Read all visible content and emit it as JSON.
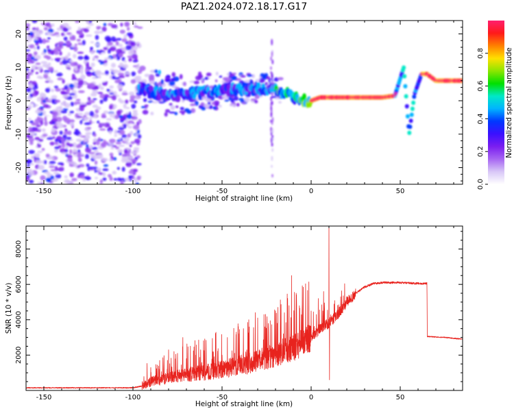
{
  "title": "PAZ1.2024.072.18.17.G17",
  "colors": {
    "snr_line": "#e8231e",
    "spectrum_cmap": [
      "#ffffff",
      "#d8c7f7",
      "#a766f2",
      "#7a1ef0",
      "#3b10ff",
      "#0038ff",
      "#00b4ff",
      "#00e8c8",
      "#00e000",
      "#8ce600",
      "#ffe000",
      "#ff8000",
      "#ff1a1a",
      "#ff1f6e"
    ]
  },
  "chart_data": [
    {
      "type": "heatmap",
      "xlabel": "Height of straight line (km)",
      "ylabel": "Frequency (Hz)",
      "xlim": [
        -160,
        85
      ],
      "ylim": [
        -25,
        24
      ],
      "xticks": [
        {
          "v": -150,
          "label": "-150"
        },
        {
          "v": -100,
          "label": "-100"
        },
        {
          "v": -50,
          "label": "-50"
        },
        {
          "v": 0,
          "label": "0"
        },
        {
          "v": 50,
          "label": "50"
        }
      ],
      "yticks": [
        {
          "v": -20,
          "label": "-20"
        },
        {
          "v": -10,
          "label": "-10"
        },
        {
          "v": 0,
          "label": "0"
        },
        {
          "v": 10,
          "label": "10"
        },
        {
          "v": 20,
          "label": "20"
        }
      ],
      "colorbar": {
        "label": "Normalized spectral amplitude",
        "range": [
          0,
          1
        ],
        "ticks": [
          {
            "v": 0.0,
            "label": "0.0"
          },
          {
            "v": 0.2,
            "label": "0.2"
          },
          {
            "v": 0.4,
            "label": "0.4"
          },
          {
            "v": 0.6,
            "label": "0.6"
          },
          {
            "v": 0.8,
            "label": "0.8"
          }
        ]
      },
      "ridge": [
        [
          -97,
          4
        ],
        [
          -90,
          2.5
        ],
        [
          -80,
          1.5
        ],
        [
          -70,
          2
        ],
        [
          -60,
          2.5
        ],
        [
          -50,
          3
        ],
        [
          -40,
          3.5
        ],
        [
          -30,
          3.5
        ],
        [
          -20,
          3.5
        ],
        [
          -15,
          2.5
        ],
        [
          -10,
          1
        ],
        [
          -5,
          0
        ],
        [
          0,
          0
        ],
        [
          5,
          1
        ],
        [
          10,
          1
        ],
        [
          20,
          1
        ],
        [
          30,
          1
        ],
        [
          40,
          1
        ],
        [
          47,
          1.5
        ],
        [
          52,
          10
        ],
        [
          55,
          -10
        ],
        [
          58,
          2
        ],
        [
          62,
          8
        ],
        [
          65,
          8
        ],
        [
          70,
          6
        ],
        [
          85,
          6
        ]
      ]
    },
    {
      "type": "line",
      "xlabel": "Height of straight line (km)",
      "ylabel": "SNR (10 * v/v)",
      "xlim": [
        -160,
        85
      ],
      "ylim": [
        0,
        9300
      ],
      "xticks": [
        {
          "v": -150,
          "label": "-150"
        },
        {
          "v": -100,
          "label": "-100"
        },
        {
          "v": -50,
          "label": "-50"
        },
        {
          "v": 0,
          "label": "0"
        },
        {
          "v": 50,
          "label": "50"
        }
      ],
      "yticks": [
        {
          "v": 2000,
          "label": "2000"
        },
        {
          "v": 4000,
          "label": "4000"
        },
        {
          "v": 6000,
          "label": "6000"
        },
        {
          "v": 8000,
          "label": "8000"
        }
      ],
      "envelope": [
        [
          -160,
          150
        ],
        [
          -100,
          150
        ],
        [
          -95,
          250
        ],
        [
          -90,
          500
        ],
        [
          -80,
          700
        ],
        [
          -70,
          900
        ],
        [
          -60,
          1000
        ],
        [
          -50,
          1200
        ],
        [
          -40,
          1400
        ],
        [
          -30,
          1700
        ],
        [
          -20,
          2000
        ],
        [
          -10,
          2400
        ],
        [
          0,
          3000
        ],
        [
          5,
          3500
        ],
        [
          10,
          3800
        ],
        [
          15,
          4300
        ],
        [
          20,
          5000
        ],
        [
          25,
          5500
        ],
        [
          30,
          5850
        ],
        [
          35,
          6050
        ],
        [
          40,
          6100
        ],
        [
          50,
          6100
        ],
        [
          60,
          6050
        ],
        [
          65,
          6050
        ],
        [
          65.2,
          3050
        ],
        [
          75,
          3000
        ],
        [
          85,
          2900
        ]
      ],
      "spikes": [
        [
          -90,
          1300
        ],
        [
          -85,
          1700
        ],
        [
          -80,
          2300
        ],
        [
          -75,
          2100
        ],
        [
          -72,
          3000
        ],
        [
          -70,
          1800
        ],
        [
          -65,
          2000
        ],
        [
          -62,
          2300
        ],
        [
          -55,
          2200
        ],
        [
          -50,
          2000
        ],
        [
          -47,
          3000
        ],
        [
          -42,
          3300
        ],
        [
          -38,
          3500
        ],
        [
          -35,
          4000
        ],
        [
          -30,
          4100
        ],
        [
          -26,
          3600
        ],
        [
          -20,
          4500
        ],
        [
          -18,
          2300
        ],
        [
          -15,
          4400
        ],
        [
          -11,
          6500
        ],
        [
          -5,
          4900
        ],
        [
          0,
          4500
        ],
        [
          4,
          5200
        ],
        [
          7,
          5600
        ],
        [
          10,
          9300
        ],
        [
          10.3,
          600
        ]
      ]
    }
  ]
}
